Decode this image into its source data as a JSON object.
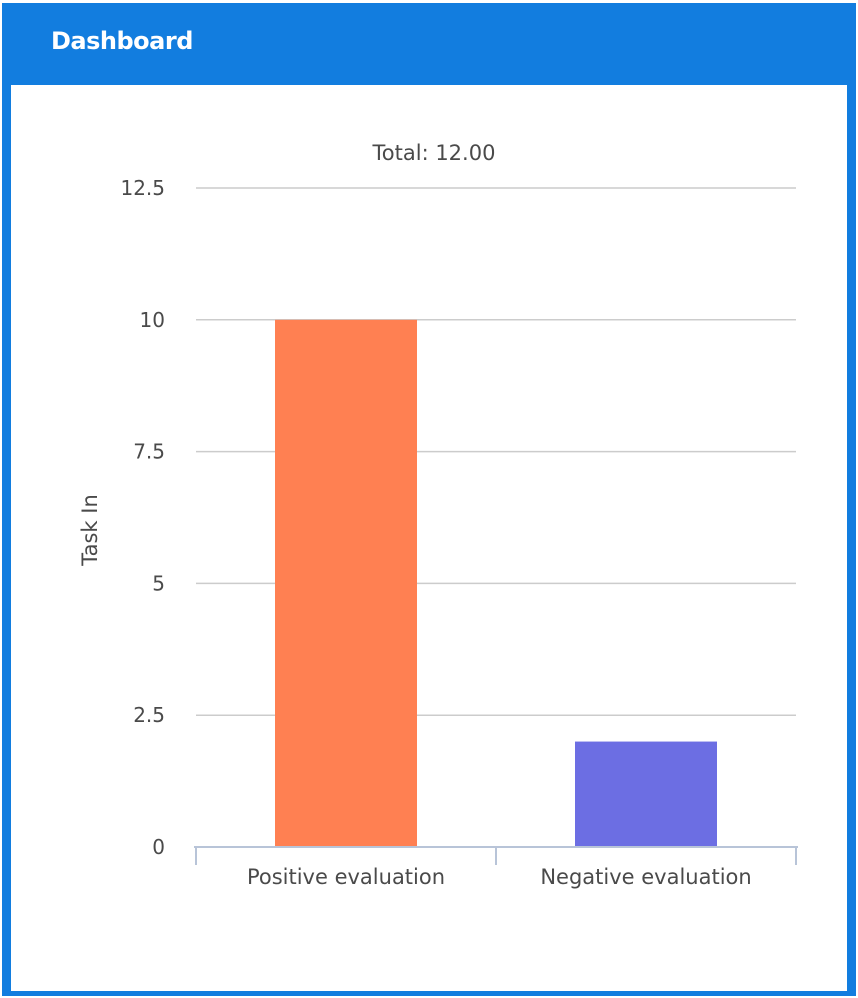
{
  "header": {
    "title": "Dashboard"
  },
  "colors": {
    "header_bg": "#127ddf",
    "grid": "#cccccc",
    "axis": "#b8c4d8"
  },
  "chart_data": {
    "type": "bar",
    "title": "Total: 12.00",
    "ylabel": "Task In",
    "xlabel": "",
    "categories": [
      "Positive evaluation",
      "Negative evaluation"
    ],
    "values": [
      10,
      2
    ],
    "bar_colors": [
      "#ff8052",
      "#6c6ee3"
    ],
    "ylim": [
      0,
      12.5
    ],
    "yticks": [
      0,
      2.5,
      5,
      7.5,
      10,
      12.5
    ],
    "ytick_labels": [
      "0",
      "2.5",
      "5",
      "7.5",
      "10",
      "12.5"
    ],
    "grid": true,
    "legend": "none"
  }
}
